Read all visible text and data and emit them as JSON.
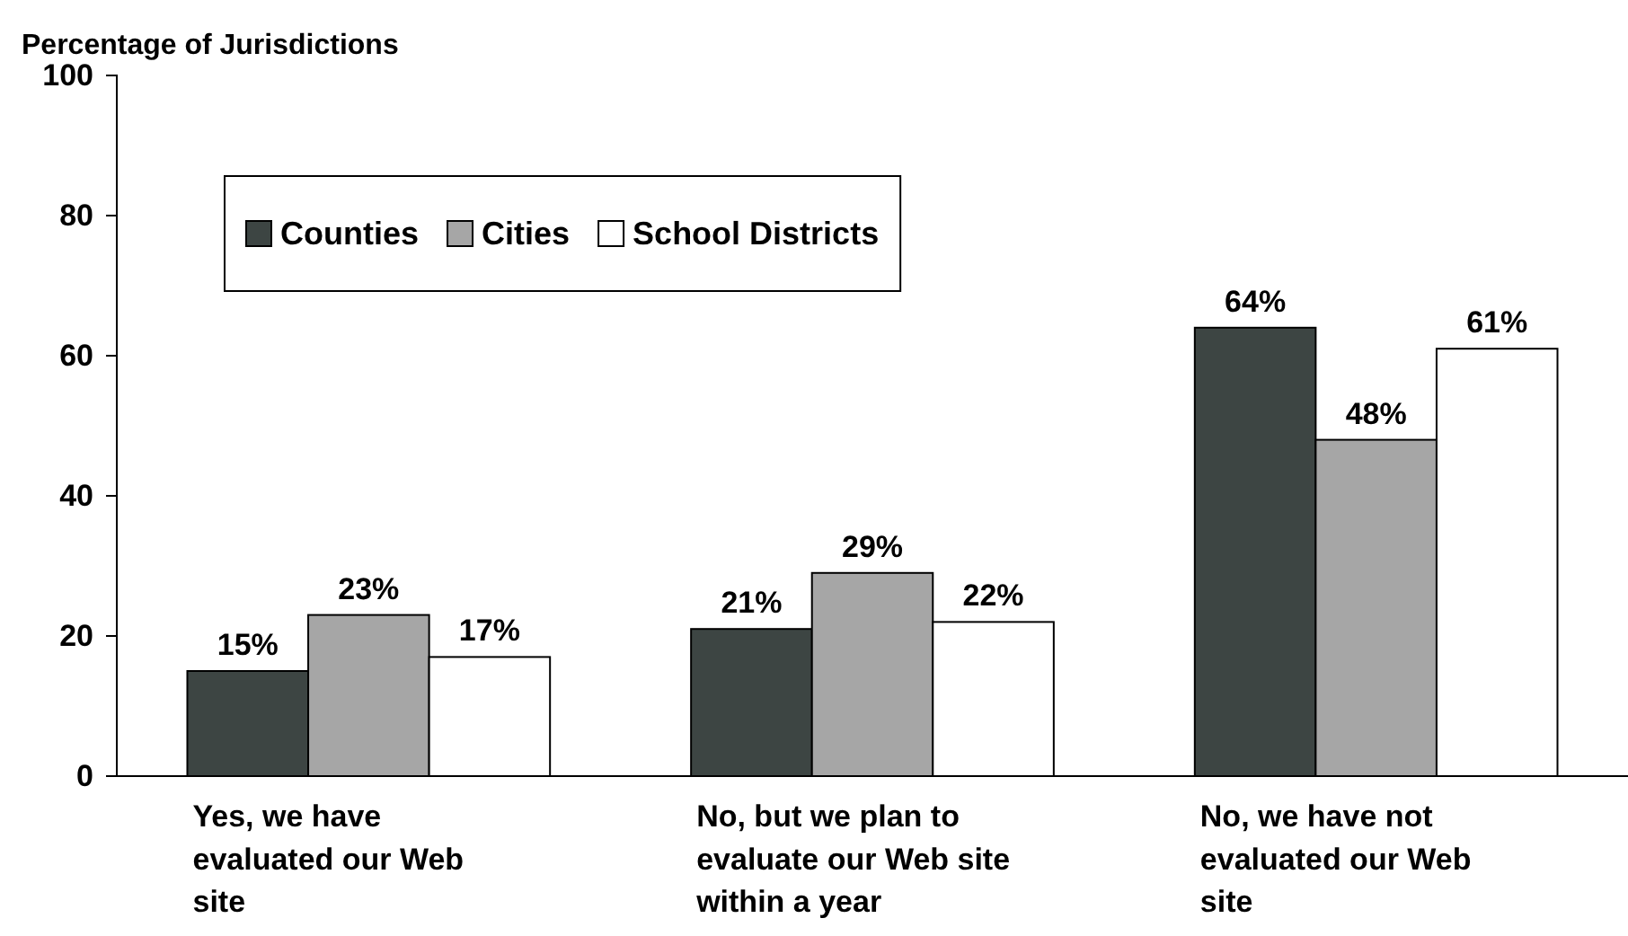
{
  "chart_data": {
    "type": "bar",
    "ylabel": "Percentage of Jurisdictions",
    "categories": [
      "Yes, we have evaluated our Web site",
      "No, but we plan to evaluate our Web site within a year",
      "No, we have not evaluated our Web site"
    ],
    "series": [
      {
        "name": "Counties",
        "color": "#3d4543",
        "values": [
          15,
          21,
          64
        ],
        "value_labels": [
          "15%",
          "21%",
          "64%"
        ]
      },
      {
        "name": "Cities",
        "color": "#a6a6a6",
        "values": [
          23,
          29,
          48
        ],
        "value_labels": [
          "23%",
          "29%",
          "48%"
        ]
      },
      {
        "name": "School Districts",
        "color": "#ffffff",
        "values": [
          17,
          22,
          61
        ],
        "value_labels": [
          "17%",
          "22%",
          "61%"
        ]
      }
    ],
    "ylim": [
      0,
      100
    ],
    "yticks": [
      0,
      20,
      40,
      60,
      80,
      100
    ],
    "grid": false,
    "legend": "top left"
  }
}
